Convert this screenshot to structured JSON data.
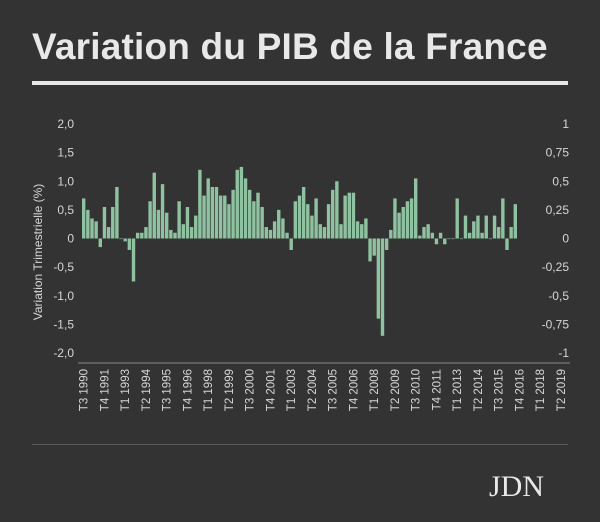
{
  "title": "Variation du PIB de la France",
  "logo": "JDN",
  "chart_data": {
    "type": "bar",
    "title": "Variation du PIB de la France",
    "ylabel": "Variation Trimestrielle (%)",
    "ylim": [
      -2.0,
      2.0
    ],
    "y2lim": [
      -1,
      1
    ],
    "yticks": [
      "2,0",
      "1,5",
      "1,0",
      "0,5",
      "0",
      "-0,5",
      "-1,0",
      "-1,5",
      "-2,0"
    ],
    "y2ticks": [
      "1",
      "0,75",
      "0,5",
      "0,25",
      "0",
      "-0,25",
      "-0,5",
      "-0,75",
      "-1"
    ],
    "xticks": [
      "T3 1990",
      "T4 1991",
      "T1 1993",
      "T2 1994",
      "T3 1995",
      "T4 1996",
      "T1 1998",
      "T2 1999",
      "T3 2000",
      "T4 2001",
      "T1 2003",
      "T2 2004",
      "T3 2005",
      "T4 2006",
      "T1 2008",
      "T2 2009",
      "T3 2010",
      "T4 2011",
      "T1 2013",
      "T2 2014",
      "T3 2015",
      "T4 2016",
      "T1 2018",
      "T2 2019"
    ],
    "start_label": "T3 1990",
    "bar_color": "#8fc2a0",
    "grid": false,
    "values": [
      0.7,
      0.5,
      0.35,
      0.3,
      -0.15,
      0.55,
      0.2,
      0.55,
      0.9,
      0.0,
      -0.05,
      -0.2,
      -0.75,
      0.1,
      0.1,
      0.2,
      0.65,
      1.15,
      0.5,
      0.95,
      0.45,
      0.15,
      0.1,
      0.65,
      0.25,
      0.55,
      0.2,
      0.4,
      1.2,
      0.75,
      1.05,
      0.9,
      0.9,
      0.75,
      0.75,
      0.6,
      0.85,
      1.2,
      1.25,
      1.05,
      0.85,
      0.65,
      0.8,
      0.55,
      0.2,
      0.15,
      0.3,
      0.5,
      0.35,
      0.1,
      -0.2,
      0.65,
      0.75,
      0.9,
      0.6,
      0.4,
      0.7,
      0.25,
      0.2,
      0.6,
      0.85,
      1.0,
      0.25,
      0.75,
      0.8,
      0.8,
      0.3,
      0.25,
      0.35,
      -0.4,
      -0.3,
      -1.4,
      -1.7,
      -0.2,
      0.15,
      0.7,
      0.45,
      0.55,
      0.65,
      0.7,
      1.05,
      0.05,
      0.2,
      0.25,
      0.1,
      -0.1,
      0.1,
      -0.1,
      0.0,
      0.0,
      0.7,
      0.0,
      0.4,
      0.1,
      0.3,
      0.4,
      0.1,
      0.4,
      0.0,
      0.4,
      0.2,
      0.7,
      -0.2,
      0.2,
      0.6
    ]
  }
}
